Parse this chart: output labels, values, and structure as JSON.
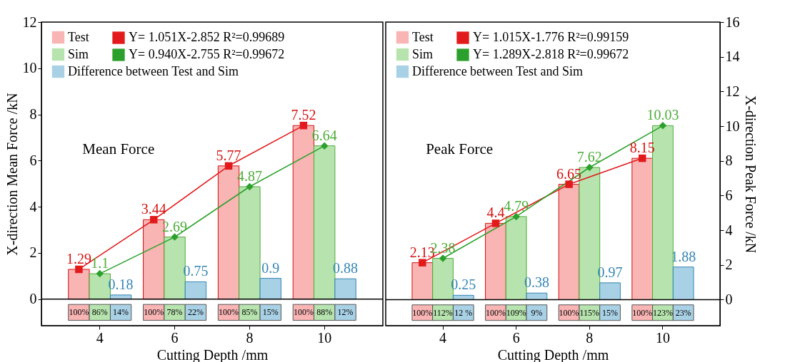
{
  "chart_data": [
    {
      "type": "bar",
      "categories": [
        "4",
        "6",
        "8",
        "10"
      ],
      "xlabel": "Cutting Depth /mm",
      "ylabel": "X-direction Mean Force /kN",
      "ylim": [
        -1.15,
        12
      ],
      "yticks": [
        0,
        2,
        4,
        6,
        8,
        10,
        12
      ],
      "grid": false,
      "legend": "top left",
      "ref_lines": [
        {
          "axis": "y",
          "value": 0,
          "color": "#000000"
        }
      ],
      "annotations": [
        "Mean Force",
        "100%",
        "86%",
        "14%",
        "100%",
        "78%",
        "22%",
        "100%",
        "85%",
        "15%",
        "100%",
        "88%",
        "12%"
      ],
      "series": [
        {
          "name": "Test",
          "type": "bar",
          "color": "#f9b4b4",
          "values": [
            1.29,
            3.44,
            5.77,
            7.52
          ],
          "value_labels": [
            "1.29",
            "3.44",
            "5.77",
            "7.52"
          ]
        },
        {
          "name": "Y= 1.051X-2.852  R²=0.99689",
          "type": "line",
          "color": "#e31a1c",
          "marker": "square",
          "values": [
            1.29,
            3.44,
            5.77,
            7.52
          ]
        },
        {
          "name": "Sim",
          "type": "bar",
          "color": "#b7e4ae",
          "values": [
            1.1,
            2.69,
            4.87,
            6.64
          ],
          "value_labels": [
            "1.1",
            "2.69",
            "4.87",
            "6.64"
          ]
        },
        {
          "name": "Y= 0.940X-2.755  R²=0.99672",
          "type": "line",
          "color": "#2ca02c",
          "marker": "diamond",
          "values": [
            1.1,
            2.69,
            4.87,
            6.64
          ]
        },
        {
          "name": "Difference between Test and Sim",
          "type": "bar",
          "color": "#a9d1e6",
          "values": [
            0.18,
            0.75,
            0.9,
            0.88
          ],
          "value_labels": [
            "0.18",
            "0.75",
            "0.9",
            "0.88"
          ]
        }
      ]
    },
    {
      "type": "bar",
      "categories": [
        "4",
        "6",
        "8",
        "10"
      ],
      "xlabel": "Cutting Depth /mm",
      "y2label": "X-direction Peak Force /kN",
      "y2lim": [
        -1.5,
        16
      ],
      "y2ticks": [
        0,
        2,
        4,
        6,
        8,
        10,
        12,
        14,
        16
      ],
      "grid": false,
      "legend": "top left",
      "ref_lines": [
        {
          "axis": "y2",
          "value": 0,
          "color": "#000000"
        }
      ],
      "annotations": [
        "Peak Force",
        "100%",
        "112%",
        "12 %",
        "100%",
        "109%",
        "9%",
        "100%",
        "115%",
        "15%",
        "100%",
        "123%",
        "23%"
      ],
      "series": [
        {
          "name": "Test",
          "type": "bar",
          "axis": "y2",
          "color": "#f9b4b4",
          "values": [
            2.13,
            4.4,
            6.65,
            8.15
          ],
          "value_labels": [
            "2.13",
            "4.4",
            "6.65",
            "8.15"
          ]
        },
        {
          "name": "Y= 1.015X-1.776  R²=0.99159",
          "type": "line",
          "axis": "y2",
          "color": "#e31a1c",
          "marker": "square",
          "values": [
            2.13,
            4.4,
            6.65,
            8.15
          ]
        },
        {
          "name": "Sim",
          "type": "bar",
          "axis": "y2",
          "color": "#b7e4ae",
          "values": [
            2.38,
            4.79,
            7.62,
            10.03
          ],
          "value_labels": [
            "2.38",
            "4.79",
            "7.62",
            "10.03"
          ]
        },
        {
          "name": "Y= 1.289X-2.818  R²=0.99672",
          "type": "line",
          "axis": "y2",
          "color": "#2ca02c",
          "marker": "diamond",
          "values": [
            2.38,
            4.79,
            7.62,
            10.03
          ]
        },
        {
          "name": "Difference between Test and Sim",
          "type": "bar",
          "axis": "y2",
          "color": "#a9d1e6",
          "values": [
            0.25,
            0.38,
            0.97,
            1.88
          ],
          "value_labels": [
            "0.25",
            "0.38",
            "0.97",
            "1.88"
          ]
        }
      ]
    }
  ]
}
